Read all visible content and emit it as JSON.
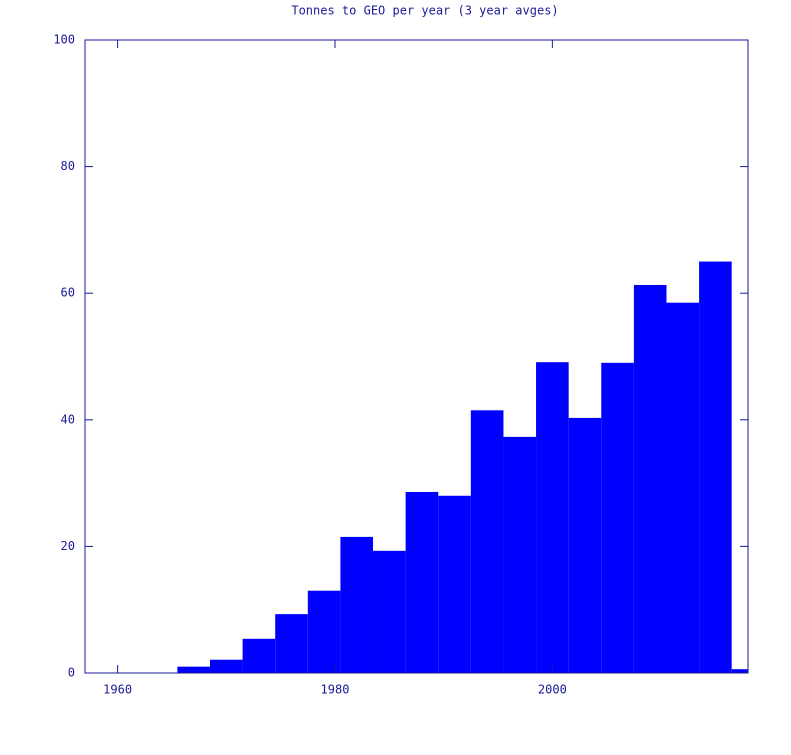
{
  "chart_data": {
    "type": "histogram",
    "title": "Tonnes to GEO per year (3 year avges)",
    "bins": [
      1965.5,
      1968.5,
      1971.5,
      1974.5,
      1977.5,
      1980.5,
      1983.5,
      1986.5,
      1989.5,
      1992.5,
      1995.5,
      1998.5,
      2001.5,
      2004.5,
      2007.5,
      2010.5,
      2013.5,
      2016.5,
      2019.5
    ],
    "values": [
      1.0,
      2.1,
      5.4,
      9.3,
      13,
      21.5,
      19.3,
      28.6,
      28,
      41.5,
      37.3,
      49.1,
      40.3,
      49,
      61.3,
      58.5,
      65,
      0.6
    ],
    "color": "#0000ff",
    "xlim": [
      1957,
      2018
    ],
    "xticks": [
      1960,
      1980,
      2000
    ],
    "ylim": [
      0,
      100
    ],
    "yticks": [
      0,
      20,
      40,
      60,
      80,
      100
    ]
  }
}
